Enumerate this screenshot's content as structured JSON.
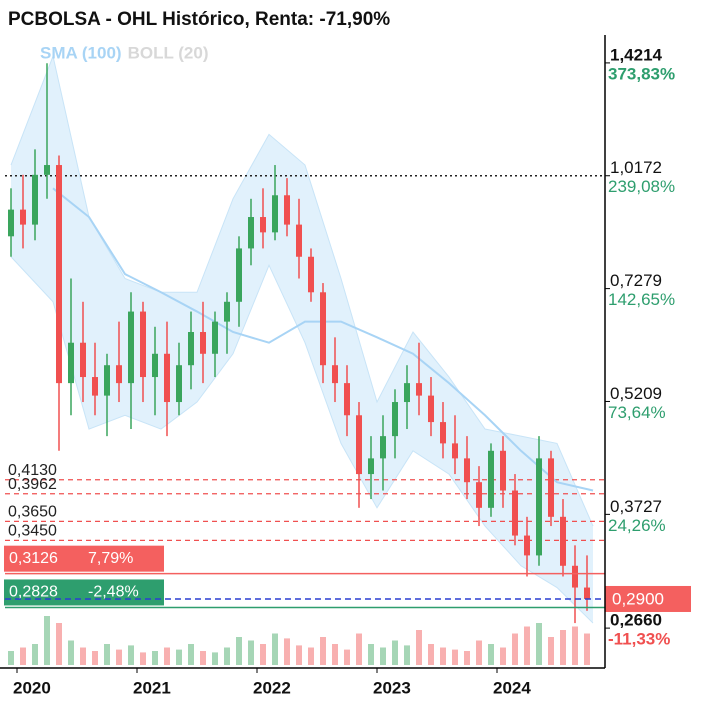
{
  "chart_data": {
    "type": "candlestick",
    "title": "PCBOLSA - OHL Histórico, Renta: -71,90%",
    "log_scale": true,
    "xlim": [
      2019.9,
      2024.9
    ],
    "xticks": [
      2020,
      2021,
      2022,
      2023,
      2024
    ],
    "ylim": [
      0.242,
      1.544
    ],
    "yticks": [
      {
        "value": 1.4214,
        "label": "1,4214"
      },
      {
        "value": 1.0172,
        "label": "1,0172"
      },
      {
        "value": 0.7279,
        "label": "0,7279"
      },
      {
        "value": 0.5209,
        "label": "0,5209"
      },
      {
        "value": 0.3727,
        "label": "0,3727"
      },
      {
        "value": 0.266,
        "label": "0,2660"
      }
    ],
    "ytick_changes": [
      "373,83%",
      "239,08%",
      "142,65%",
      "73,64%",
      "24,26%",
      "-11,33%"
    ],
    "dotted_line": 1.0172,
    "series": {
      "up_color": "#3aa55d",
      "down_color": "#f05050",
      "x": [
        2019.95,
        2020.05,
        2020.15,
        2020.25,
        2020.35,
        2020.45,
        2020.55,
        2020.65,
        2020.75,
        2020.85,
        2020.95,
        2021.05,
        2021.15,
        2021.25,
        2021.35,
        2021.45,
        2021.55,
        2021.65,
        2021.75,
        2021.85,
        2021.95,
        2022.05,
        2022.15,
        2022.25,
        2022.35,
        2022.45,
        2022.55,
        2022.65,
        2022.75,
        2022.85,
        2022.95,
        2023.05,
        2023.15,
        2023.25,
        2023.35,
        2023.45,
        2023.55,
        2023.65,
        2023.75,
        2023.85,
        2023.95,
        2024.05,
        2024.15,
        2024.25,
        2024.35,
        2024.45,
        2024.55,
        2024.65,
        2024.75
      ],
      "open": [
        0.85,
        0.92,
        0.88,
        1.02,
        1.05,
        0.55,
        0.62,
        0.56,
        0.53,
        0.58,
        0.55,
        0.68,
        0.56,
        0.6,
        0.52,
        0.58,
        0.64,
        0.6,
        0.66,
        0.7,
        0.82,
        0.9,
        0.86,
        0.96,
        0.88,
        0.8,
        0.72,
        0.58,
        0.55,
        0.5,
        0.42,
        0.44,
        0.47,
        0.52,
        0.55,
        0.53,
        0.49,
        0.46,
        0.44,
        0.41,
        0.38,
        0.45,
        0.4,
        0.35,
        0.33,
        0.44,
        0.37,
        0.32,
        0.3
      ],
      "high": [
        0.98,
        1.02,
        1.1,
        1.42,
        1.08,
        0.75,
        0.7,
        0.62,
        0.6,
        0.66,
        0.72,
        0.7,
        0.65,
        0.66,
        0.62,
        0.68,
        0.7,
        0.68,
        0.72,
        0.85,
        0.95,
        0.98,
        1.05,
        1.01,
        0.95,
        0.82,
        0.74,
        0.63,
        0.58,
        0.52,
        0.47,
        0.5,
        0.54,
        0.58,
        0.62,
        0.56,
        0.52,
        0.5,
        0.47,
        0.43,
        0.46,
        0.47,
        0.42,
        0.37,
        0.47,
        0.45,
        0.39,
        0.34,
        0.33
      ],
      "low": [
        0.8,
        0.82,
        0.84,
        0.95,
        0.45,
        0.5,
        0.52,
        0.5,
        0.47,
        0.52,
        0.48,
        0.52,
        0.5,
        0.47,
        0.5,
        0.54,
        0.55,
        0.56,
        0.6,
        0.65,
        0.78,
        0.82,
        0.84,
        0.85,
        0.75,
        0.7,
        0.55,
        0.52,
        0.47,
        0.38,
        0.39,
        0.4,
        0.44,
        0.48,
        0.5,
        0.47,
        0.44,
        0.42,
        0.39,
        0.36,
        0.37,
        0.38,
        0.34,
        0.31,
        0.32,
        0.36,
        0.31,
        0.27,
        0.28
      ],
      "close": [
        0.92,
        0.88,
        1.02,
        1.05,
        0.55,
        0.62,
        0.56,
        0.53,
        0.58,
        0.55,
        0.68,
        0.56,
        0.6,
        0.52,
        0.58,
        0.64,
        0.6,
        0.66,
        0.7,
        0.82,
        0.9,
        0.86,
        0.96,
        0.88,
        0.8,
        0.72,
        0.58,
        0.55,
        0.5,
        0.42,
        0.44,
        0.47,
        0.52,
        0.55,
        0.53,
        0.49,
        0.46,
        0.44,
        0.41,
        0.38,
        0.45,
        0.4,
        0.35,
        0.33,
        0.44,
        0.37,
        0.32,
        0.3,
        0.29
      ],
      "volume": [
        20,
        25,
        30,
        70,
        60,
        35,
        25,
        20,
        30,
        22,
        28,
        18,
        20,
        25,
        22,
        30,
        20,
        18,
        25,
        40,
        35,
        30,
        45,
        38,
        28,
        25,
        40,
        30,
        22,
        45,
        30,
        25,
        35,
        28,
        50,
        30,
        25,
        22,
        20,
        35,
        30,
        25,
        45,
        55,
        60,
        40,
        50,
        55,
        45
      ]
    },
    "indicators": [
      {
        "name": "SMA (100)",
        "color": "#a8d4f5",
        "x": [
          2020.3,
          2020.6,
          2020.9,
          2021.2,
          2021.5,
          2021.8,
          2022.1,
          2022.4,
          2022.7,
          2023.0,
          2023.3,
          2023.6,
          2023.9,
          2024.2,
          2024.5,
          2024.8
        ],
        "values": [
          0.98,
          0.9,
          0.76,
          0.72,
          0.68,
          0.64,
          0.62,
          0.66,
          0.66,
          0.63,
          0.6,
          0.55,
          0.5,
          0.45,
          0.41,
          0.4
        ]
      },
      {
        "name": "BOLL (20)",
        "color": "#d8d8d8",
        "band_color": "#daeefb",
        "x": [
          2019.95,
          2020.3,
          2020.6,
          2020.9,
          2021.2,
          2021.5,
          2021.8,
          2022.1,
          2022.4,
          2022.7,
          2023.0,
          2023.3,
          2023.6,
          2023.9,
          2024.2,
          2024.5,
          2024.8
        ],
        "upper": [
          1.05,
          1.45,
          0.9,
          0.75,
          0.72,
          0.72,
          0.95,
          1.15,
          1.05,
          0.75,
          0.52,
          0.64,
          0.56,
          0.48,
          0.47,
          0.46,
          0.36
        ],
        "lower": [
          0.8,
          0.7,
          0.48,
          0.5,
          0.48,
          0.52,
          0.6,
          0.78,
          0.62,
          0.46,
          0.38,
          0.45,
          0.42,
          0.36,
          0.32,
          0.3,
          0.27
        ]
      }
    ],
    "levels": [
      {
        "value": 0.413,
        "label": "0,4130",
        "color": "#f05050"
      },
      {
        "value": 0.3962,
        "label": "0,3962",
        "color": "#f05050"
      },
      {
        "value": 0.365,
        "label": "0,3650",
        "color": "#f05050"
      },
      {
        "value": 0.345,
        "label": "0,3450",
        "color": "#f05050"
      }
    ],
    "markers": [
      {
        "value": 0.3126,
        "label": "0,3126",
        "change": "7,79%",
        "color": "#f4605f"
      },
      {
        "value": 0.2828,
        "label": "0,2828",
        "change": "-2,48%",
        "color": "#2e9e6e"
      }
    ],
    "last_price": {
      "value": 0.29,
      "label": "0,2900",
      "color": "#f4605f",
      "line_color": "#2a3fd0"
    }
  }
}
